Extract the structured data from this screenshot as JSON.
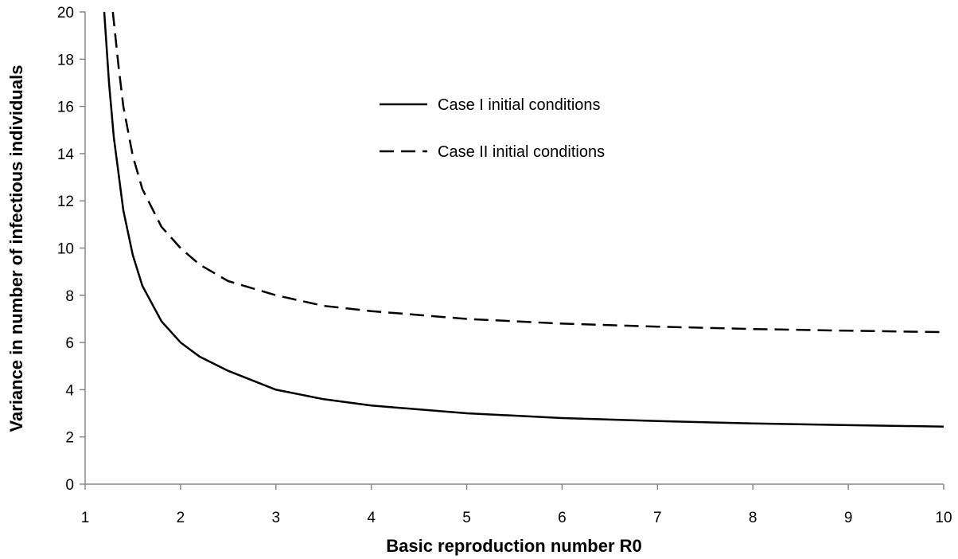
{
  "chart_data": {
    "type": "line",
    "title": "",
    "xlabel": "Basic reproduction number R0",
    "ylabel": "Variance in number of infectious individuals",
    "xlim": [
      1,
      10
    ],
    "ylim": [
      0,
      20
    ],
    "xticks": [
      1,
      2,
      3,
      4,
      5,
      6,
      7,
      8,
      9,
      10
    ],
    "yticks": [
      0,
      2,
      4,
      6,
      8,
      10,
      12,
      14,
      16,
      18,
      20
    ],
    "grid": false,
    "legend_position": "top-center",
    "series": [
      {
        "name": "Case I initial conditions",
        "style": "solid",
        "color": "#000000",
        "x": [
          1.2,
          1.25,
          1.3,
          1.4,
          1.5,
          1.6,
          1.8,
          2.0,
          2.2,
          2.5,
          3.0,
          3.5,
          4.0,
          5.0,
          6.0,
          7.0,
          8.0,
          9.0,
          10.0
        ],
        "y": [
          20.0,
          17.0,
          14.7,
          11.6,
          9.7,
          8.4,
          6.9,
          6.0,
          5.4,
          4.8,
          4.0,
          3.6,
          3.33,
          3.0,
          2.8,
          2.67,
          2.57,
          2.5,
          2.44
        ]
      },
      {
        "name": "Case II initial conditions",
        "style": "dashed",
        "color": "#000000",
        "x": [
          1.29,
          1.35,
          1.4,
          1.5,
          1.6,
          1.8,
          2.0,
          2.2,
          2.5,
          3.0,
          3.5,
          4.0,
          5.0,
          6.0,
          7.0,
          8.0,
          9.0,
          10.0
        ],
        "y": [
          20.0,
          17.7,
          16.0,
          13.9,
          12.5,
          10.9,
          10.0,
          9.3,
          8.6,
          8.0,
          7.55,
          7.33,
          7.0,
          6.8,
          6.67,
          6.57,
          6.5,
          6.44
        ]
      }
    ]
  }
}
